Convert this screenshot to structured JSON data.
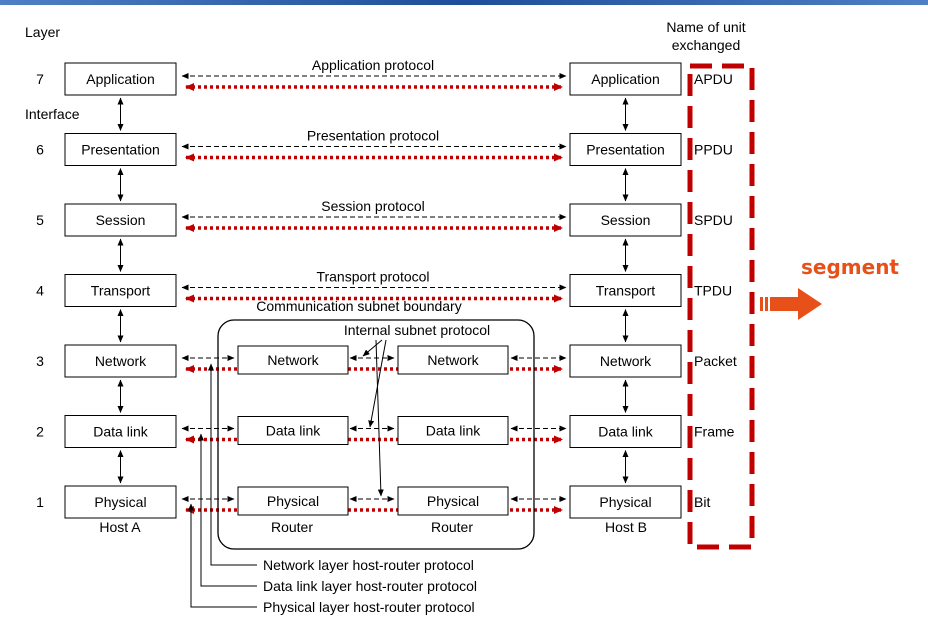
{
  "header": {
    "layer_label": "Layer",
    "unit_header_line1": "Name of unit",
    "unit_header_line2": "exchanged",
    "interface_label": "Interface",
    "subnet_boundary_label": "Communication subnet boundary",
    "internal_protocol_label": "Internal subnet protocol"
  },
  "layers": [
    {
      "number": "7",
      "name": "Application",
      "protocol": "Application protocol",
      "unit": "APDU"
    },
    {
      "number": "6",
      "name": "Presentation",
      "protocol": "Presentation protocol",
      "unit": "PPDU"
    },
    {
      "number": "5",
      "name": "Session",
      "protocol": "Session protocol",
      "unit": "SPDU"
    },
    {
      "number": "4",
      "name": "Transport",
      "protocol": "Transport protocol",
      "unit": "TPDU"
    },
    {
      "number": "3",
      "name": "Network",
      "protocol": "",
      "unit": "Packet"
    },
    {
      "number": "2",
      "name": "Data link",
      "protocol": "",
      "unit": "Frame"
    },
    {
      "number": "1",
      "name": "Physical",
      "protocol": "",
      "unit": "Bit"
    }
  ],
  "hosts": {
    "left": "Host A",
    "right": "Host B"
  },
  "routers": {
    "left": "Router",
    "right": "Router"
  },
  "host_router_protocols": [
    "Network layer host-router protocol",
    "Data link layer host-router protocol",
    "Physical layer host-router protocol"
  ],
  "annotation": {
    "text": "segment",
    "color": "#e8501a"
  },
  "colors": {
    "dotted_arrow": "#c00000",
    "highlight_box": "#c00000",
    "top_rule": "#1f4e9a"
  }
}
